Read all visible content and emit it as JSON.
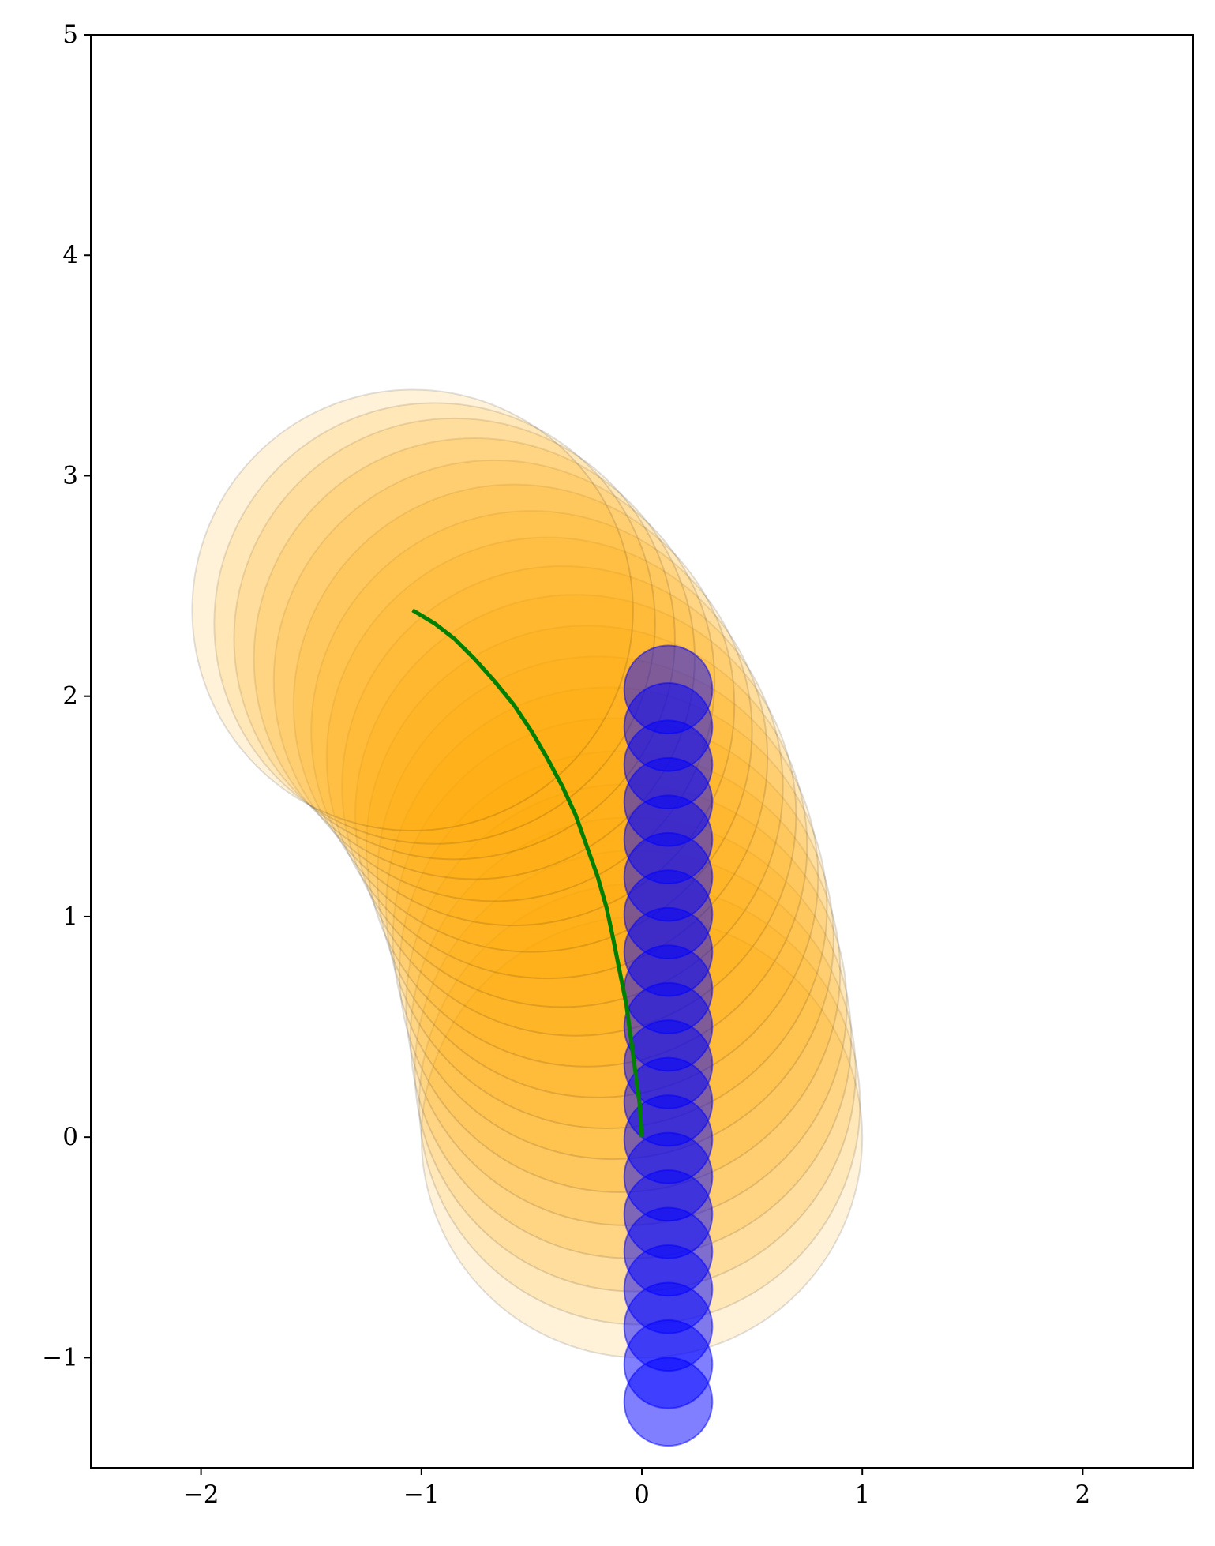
{
  "chart_data": {
    "type": "scatter",
    "title": "",
    "xlabel": "",
    "ylabel": "",
    "xlim": [
      -2.5,
      2.5
    ],
    "ylim": [
      -1.5,
      5
    ],
    "xticks": [
      -2,
      -1,
      0,
      1,
      2
    ],
    "yticks": [
      -1,
      0,
      1,
      2,
      3,
      4,
      5
    ],
    "xtick_labels": [
      "−2",
      "−1",
      "0",
      "1",
      "2"
    ],
    "ytick_labels": [
      "−1",
      "0",
      "1",
      "2",
      "3",
      "4",
      "5"
    ],
    "grid": false,
    "legend": "none",
    "colors": {
      "orange": "#FFA500",
      "blue": "#0000FF",
      "green": "#008000",
      "circle_edge": "#000000"
    },
    "orange_circles": {
      "radius": 1.0,
      "fill_alpha": 0.15,
      "centers": [
        [
          0.0,
          0.0
        ],
        [
          -0.01,
          0.15
        ],
        [
          -0.03,
          0.3
        ],
        [
          -0.05,
          0.45
        ],
        [
          -0.07,
          0.6
        ],
        [
          -0.1,
          0.75
        ],
        [
          -0.13,
          0.9
        ],
        [
          -0.16,
          1.04
        ],
        [
          -0.2,
          1.18
        ],
        [
          -0.25,
          1.32
        ],
        [
          -0.3,
          1.46
        ],
        [
          -0.36,
          1.59
        ],
        [
          -0.43,
          1.72
        ],
        [
          -0.5,
          1.84
        ],
        [
          -0.58,
          1.96
        ],
        [
          -0.67,
          2.07
        ],
        [
          -0.76,
          2.17
        ],
        [
          -0.85,
          2.26
        ],
        [
          -0.94,
          2.33
        ],
        [
          -1.04,
          2.39
        ]
      ]
    },
    "blue_circles": {
      "radius": 0.2,
      "fill_alpha": 0.5,
      "centers": [
        [
          0.12,
          -1.2
        ],
        [
          0.12,
          -1.03
        ],
        [
          0.12,
          -0.86
        ],
        [
          0.12,
          -0.69
        ],
        [
          0.12,
          -0.52
        ],
        [
          0.12,
          -0.35
        ],
        [
          0.12,
          -0.18
        ],
        [
          0.12,
          -0.01
        ],
        [
          0.12,
          0.16
        ],
        [
          0.12,
          0.33
        ],
        [
          0.12,
          0.5
        ],
        [
          0.12,
          0.67
        ],
        [
          0.12,
          0.84
        ],
        [
          0.12,
          1.01
        ],
        [
          0.12,
          1.18
        ],
        [
          0.12,
          1.35
        ],
        [
          0.12,
          1.52
        ],
        [
          0.12,
          1.69
        ],
        [
          0.12,
          1.86
        ],
        [
          0.12,
          2.03
        ]
      ]
    },
    "green_path": {
      "line_width": 3,
      "points": [
        [
          0.0,
          0.0
        ],
        [
          -0.01,
          0.15
        ],
        [
          -0.03,
          0.3
        ],
        [
          -0.05,
          0.45
        ],
        [
          -0.07,
          0.6
        ],
        [
          -0.1,
          0.75
        ],
        [
          -0.13,
          0.9
        ],
        [
          -0.16,
          1.04
        ],
        [
          -0.2,
          1.18
        ],
        [
          -0.25,
          1.32
        ],
        [
          -0.3,
          1.46
        ],
        [
          -0.36,
          1.59
        ],
        [
          -0.43,
          1.72
        ],
        [
          -0.5,
          1.84
        ],
        [
          -0.58,
          1.96
        ],
        [
          -0.67,
          2.07
        ],
        [
          -0.76,
          2.17
        ],
        [
          -0.85,
          2.26
        ],
        [
          -0.94,
          2.33
        ],
        [
          -1.04,
          2.39
        ]
      ]
    }
  }
}
